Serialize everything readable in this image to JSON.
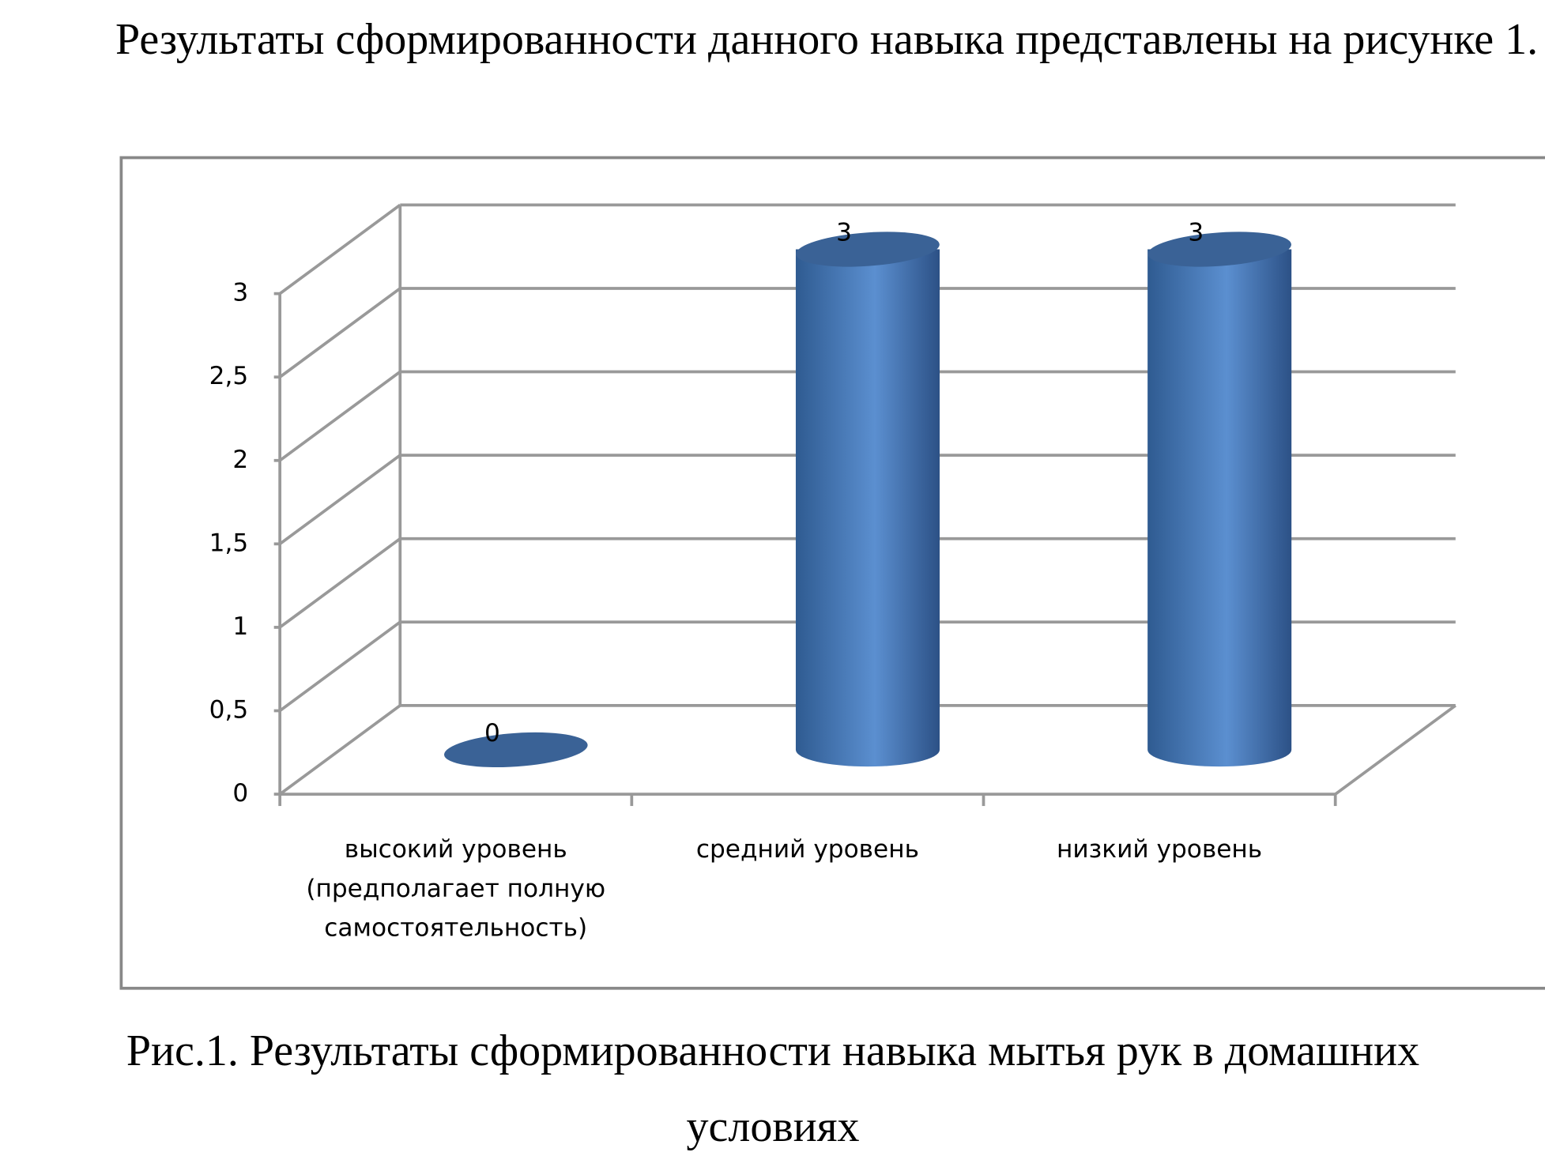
{
  "paragraph": "Результаты сформированности данного навыка представлены на рисунке 1.",
  "chart_data": {
    "type": "cylinder3d",
    "categories": [
      "высокий уровень (предполагает полную самостоятельность)",
      "средний уровень",
      "низкий уровень"
    ],
    "values": [
      0,
      3,
      3
    ],
    "color": "#4f81bd",
    "ylim": [
      0,
      3
    ],
    "yticks": [
      0,
      {
        "value": 0.5,
        "label": "0,5"
      },
      1,
      {
        "value": 1.5,
        "label": "1,5"
      },
      2,
      {
        "value": 2.5,
        "label": "2,5"
      },
      3
    ],
    "grid": true
  },
  "caption": "Рис.1. Результаты сформированности навыка мытья рук в домашних условиях"
}
